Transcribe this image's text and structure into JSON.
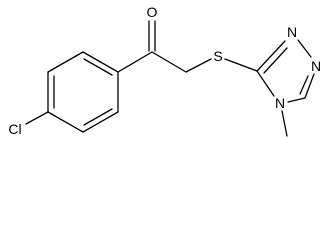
{
  "atoms": [
    {
      "label": "O"
    },
    {
      "label": "S"
    },
    {
      "label": "N"
    },
    {
      "label": "N"
    },
    {
      "label": "N"
    },
    {
      "label": "Cl"
    }
  ]
}
